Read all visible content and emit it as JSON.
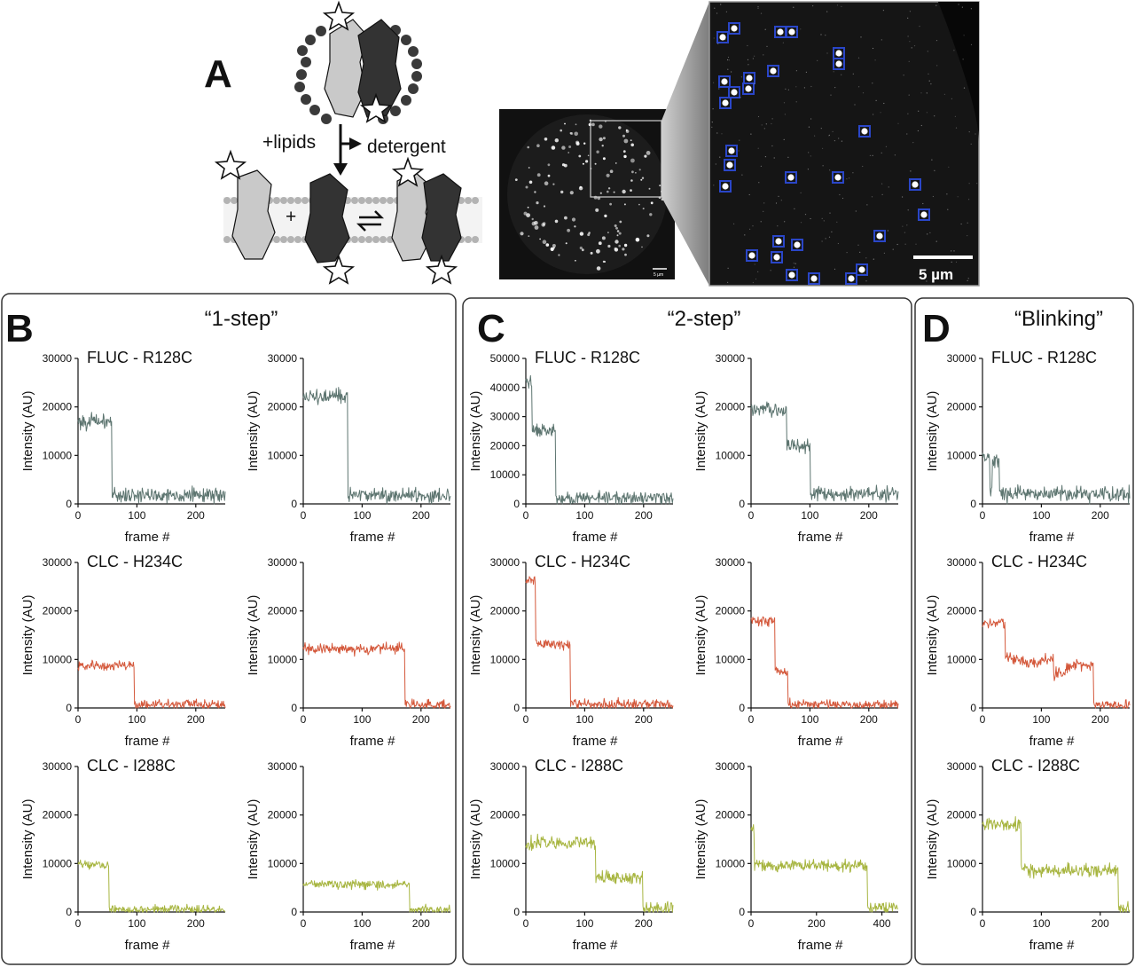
{
  "panel_a": {
    "letter": "A",
    "label_lipids": "+lipids",
    "label_detergent": "detergent",
    "label_plus": "+",
    "scale_bar_label": "5 µm",
    "scale_bar_label_small": "5 µm"
  },
  "panels": [
    {
      "letter": "B",
      "title": "“1-step”"
    },
    {
      "letter": "C",
      "title": "“2-step”"
    },
    {
      "letter": "D",
      "title": "“Blinking”"
    }
  ],
  "colors": {
    "fluc": "#5d7570",
    "clc_h234c": "#d4583b",
    "clc_i288c": "#a7b540"
  },
  "chart_data": [
    {
      "type": "line",
      "panel": "B",
      "row": 0,
      "col": 0,
      "title": "FLUC - R128C",
      "color": "#5d7570",
      "xlabel": "frame #",
      "ylabel": "Intensity (AU)",
      "xlim": [
        0,
        250
      ],
      "ylim": [
        0,
        30000
      ],
      "xticks": [
        0,
        100,
        200
      ],
      "yticks": [
        0,
        10000,
        20000,
        30000
      ],
      "steps": [
        {
          "until": 57,
          "level": 17000
        },
        {
          "until": 250,
          "level": 1800
        }
      ],
      "noise": 1300
    },
    {
      "type": "line",
      "panel": "B",
      "row": 0,
      "col": 1,
      "title": "",
      "color": "#5d7570",
      "xlabel": "frame #",
      "ylabel": "Intensity (AU)",
      "xlim": [
        0,
        250
      ],
      "ylim": [
        0,
        30000
      ],
      "xticks": [
        0,
        100,
        200
      ],
      "yticks": [
        0,
        10000,
        20000,
        30000
      ],
      "steps": [
        {
          "until": 75,
          "level": 22000
        },
        {
          "until": 250,
          "level": 1800
        }
      ],
      "noise": 1300
    },
    {
      "type": "line",
      "panel": "B",
      "row": 1,
      "col": 0,
      "title": "CLC - H234C",
      "color": "#d4583b",
      "xlabel": "frame #",
      "ylabel": "Intensity (AU)",
      "xlim": [
        0,
        250
      ],
      "ylim": [
        0,
        30000
      ],
      "xticks": [
        0,
        100,
        200
      ],
      "yticks": [
        0,
        10000,
        20000,
        30000
      ],
      "steps": [
        {
          "until": 95,
          "level": 8700
        },
        {
          "until": 250,
          "level": 700
        }
      ],
      "noise": 900
    },
    {
      "type": "line",
      "panel": "B",
      "row": 1,
      "col": 1,
      "title": "",
      "color": "#d4583b",
      "xlabel": "frame #",
      "ylabel": "Intensity (AU)",
      "xlim": [
        0,
        250
      ],
      "ylim": [
        0,
        30000
      ],
      "xticks": [
        0,
        100,
        200
      ],
      "yticks": [
        0,
        10000,
        20000,
        30000
      ],
      "steps": [
        {
          "until": 172,
          "level": 12200
        },
        {
          "until": 250,
          "level": 700
        }
      ],
      "noise": 900
    },
    {
      "type": "line",
      "panel": "B",
      "row": 2,
      "col": 0,
      "title": "CLC - I288C",
      "color": "#a7b540",
      "xlabel": "frame #",
      "ylabel": "Intensity (AU)",
      "xlim": [
        0,
        250
      ],
      "ylim": [
        0,
        30000
      ],
      "xticks": [
        0,
        100,
        200
      ],
      "yticks": [
        0,
        10000,
        20000,
        30000
      ],
      "steps": [
        {
          "until": 52,
          "level": 9800
        },
        {
          "until": 250,
          "level": 500
        }
      ],
      "noise": 700
    },
    {
      "type": "line",
      "panel": "B",
      "row": 2,
      "col": 1,
      "title": "",
      "color": "#a7b540",
      "xlabel": "frame #",
      "ylabel": "Intensity (AU)",
      "xlim": [
        0,
        250
      ],
      "ylim": [
        0,
        30000
      ],
      "xticks": [
        0,
        100,
        200
      ],
      "yticks": [
        0,
        10000,
        20000,
        30000
      ],
      "steps": [
        {
          "until": 180,
          "level": 5700
        },
        {
          "until": 250,
          "level": 400
        }
      ],
      "noise": 700
    },
    {
      "type": "line",
      "panel": "C",
      "row": 0,
      "col": 0,
      "title": "FLUC - R128C",
      "color": "#5d7570",
      "xlabel": "frame #",
      "ylabel": "Intensity (AU)",
      "xlim": [
        0,
        250
      ],
      "ylim": [
        0,
        50000
      ],
      "xticks": [
        0,
        100,
        200
      ],
      "yticks": [
        0,
        10000,
        20000,
        30000,
        40000,
        50000
      ],
      "steps": [
        {
          "until": 10,
          "level": 42000
        },
        {
          "until": 50,
          "level": 25500
        },
        {
          "until": 250,
          "level": 2000
        }
      ],
      "noise": 1800
    },
    {
      "type": "line",
      "panel": "C",
      "row": 0,
      "col": 1,
      "title": "",
      "color": "#5d7570",
      "xlabel": "frame #",
      "ylabel": "Intensity (AU)",
      "xlim": [
        0,
        250
      ],
      "ylim": [
        0,
        30000
      ],
      "xticks": [
        0,
        100,
        200
      ],
      "yticks": [
        0,
        10000,
        20000,
        30000
      ],
      "steps": [
        {
          "until": 60,
          "level": 19500
        },
        {
          "until": 100,
          "level": 12000
        },
        {
          "until": 250,
          "level": 2000
        }
      ],
      "noise": 1300
    },
    {
      "type": "line",
      "panel": "C",
      "row": 1,
      "col": 0,
      "title": "CLC - H234C",
      "color": "#d4583b",
      "xlabel": "frame #",
      "ylabel": "Intensity (AU)",
      "xlim": [
        0,
        250
      ],
      "ylim": [
        0,
        30000
      ],
      "xticks": [
        0,
        100,
        200
      ],
      "yticks": [
        0,
        10000,
        20000,
        30000
      ],
      "steps": [
        {
          "until": 16,
          "level": 26000
        },
        {
          "until": 75,
          "level": 13200
        },
        {
          "until": 250,
          "level": 700
        }
      ],
      "noise": 900
    },
    {
      "type": "line",
      "panel": "C",
      "row": 1,
      "col": 1,
      "title": "",
      "color": "#d4583b",
      "xlabel": "frame #",
      "ylabel": "Intensity (AU)",
      "xlim": [
        0,
        250
      ],
      "ylim": [
        0,
        30000
      ],
      "xticks": [
        0,
        100,
        200
      ],
      "yticks": [
        0,
        10000,
        20000,
        30000
      ],
      "steps": [
        {
          "until": 40,
          "level": 18000
        },
        {
          "until": 62,
          "level": 7500
        },
        {
          "until": 250,
          "level": 700
        }
      ],
      "noise": 900
    },
    {
      "type": "line",
      "panel": "C",
      "row": 2,
      "col": 0,
      "title": "CLC - I288C",
      "color": "#a7b540",
      "xlabel": "frame #",
      "ylabel": "Intensity (AU)",
      "xlim": [
        0,
        250
      ],
      "ylim": [
        0,
        30000
      ],
      "xticks": [
        0,
        100,
        200
      ],
      "yticks": [
        0,
        10000,
        20000,
        30000
      ],
      "steps": [
        {
          "until": 118,
          "level": 14300
        },
        {
          "until": 198,
          "level": 7000
        },
        {
          "until": 250,
          "level": 600
        }
      ],
      "noise": 1100
    },
    {
      "type": "line",
      "panel": "C",
      "row": 2,
      "col": 1,
      "title": "",
      "color": "#a7b540",
      "xlabel": "frame #",
      "ylabel": "Intensity (AU)",
      "xlim": [
        0,
        450
      ],
      "ylim": [
        0,
        30000
      ],
      "xticks": [
        0,
        200,
        400
      ],
      "yticks": [
        0,
        10000,
        20000,
        30000
      ],
      "steps": [
        {
          "until": 10,
          "level": 17000
        },
        {
          "until": 355,
          "level": 9500
        },
        {
          "until": 450,
          "level": 700
        }
      ],
      "noise": 1100
    },
    {
      "type": "line",
      "panel": "D",
      "row": 0,
      "col": 0,
      "title": "FLUC - R128C",
      "color": "#5d7570",
      "xlabel": "frame #",
      "ylabel": "Intensity (AU)",
      "xlim": [
        0,
        250
      ],
      "ylim": [
        0,
        30000
      ],
      "xticks": [
        0,
        100,
        200
      ],
      "yticks": [
        0,
        10000,
        20000,
        30000
      ],
      "steps": [
        {
          "until": 12,
          "level": 9500
        },
        {
          "until": 16,
          "level": 2500
        },
        {
          "until": 28,
          "level": 9000
        },
        {
          "until": 250,
          "level": 2000
        }
      ],
      "noise": 1300
    },
    {
      "type": "line",
      "panel": "D",
      "row": 1,
      "col": 0,
      "title": "CLC - H234C",
      "color": "#d4583b",
      "xlabel": "frame #",
      "ylabel": "Intensity (AU)",
      "xlim": [
        0,
        250
      ],
      "ylim": [
        0,
        30000
      ],
      "xticks": [
        0,
        100,
        200
      ],
      "yticks": [
        0,
        10000,
        20000,
        30000
      ],
      "steps": [
        {
          "until": 38,
          "level": 17500
        },
        {
          "until": 70,
          "level": 10000
        },
        {
          "until": 95,
          "level": 9000
        },
        {
          "until": 120,
          "level": 10000
        },
        {
          "until": 140,
          "level": 7000
        },
        {
          "until": 188,
          "level": 8700
        },
        {
          "until": 250,
          "level": 700
        }
      ],
      "noise": 1000
    },
    {
      "type": "line",
      "panel": "D",
      "row": 2,
      "col": 0,
      "title": "CLC - I288C",
      "color": "#a7b540",
      "xlabel": "frame #",
      "ylabel": "Intensity (AU)",
      "xlim": [
        0,
        250
      ],
      "ylim": [
        0,
        30000
      ],
      "xticks": [
        0,
        100,
        200
      ],
      "yticks": [
        0,
        10000,
        20000,
        30000
      ],
      "steps": [
        {
          "until": 65,
          "level": 18000
        },
        {
          "until": 75,
          "level": 9000
        },
        {
          "until": 230,
          "level": 8500
        },
        {
          "until": 250,
          "level": 600
        }
      ],
      "noise": 1100
    }
  ]
}
